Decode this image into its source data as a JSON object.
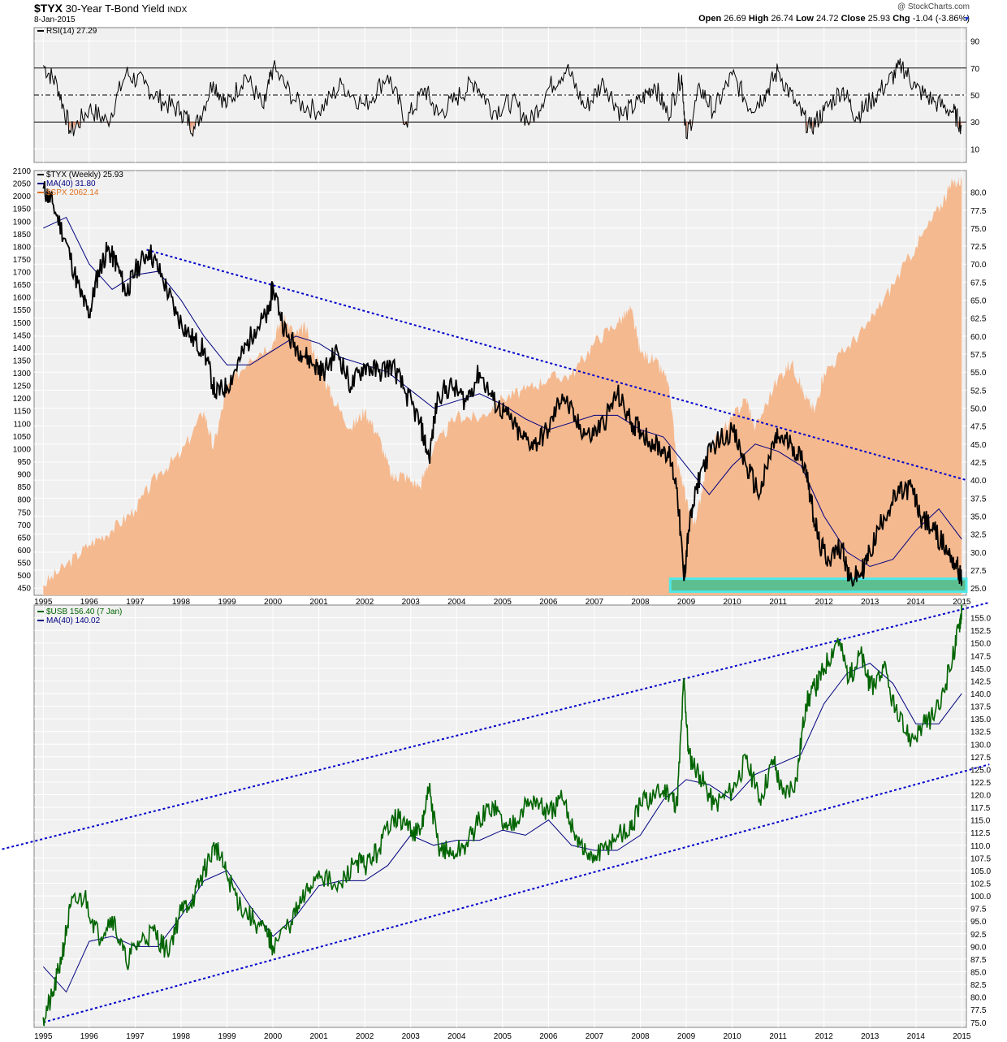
{
  "header": {
    "symbol": "$TYX",
    "name": "30-Year T-Bond Yield",
    "exchange": "INDX",
    "date": "8-Jan-2015",
    "copyright": "@ StockCharts.com",
    "ohlc": {
      "open_label": "Open",
      "open": "26.69",
      "high_label": "High",
      "high": "26.74",
      "low_label": "Low",
      "low": "24.72",
      "close_label": "Close",
      "close": "25.93",
      "chg_label": "Chg",
      "chg": "-1.04 (-3.86%)"
    },
    "chg_arrow_icon": "down-triangle-icon"
  },
  "colors": {
    "panel_bg": "#f0f0f0",
    "tyx_line": "#000000",
    "ma_line": "#000080",
    "spx_fill": "#f5b98f",
    "usb_line": "#006400",
    "trend_line": "#0000cc",
    "support_band": "#5dbf8f",
    "support_band_edge": "#50e8e8",
    "rsi_oversold_fill": "#e07040"
  },
  "chart_data": [
    {
      "type": "line",
      "panel": "rsi",
      "legend": [
        {
          "label": "RSI(14) 27.29",
          "color": "#000000"
        }
      ],
      "ylim": [
        0,
        100
      ],
      "y_ticks": [
        "10",
        "30",
        "50",
        "70",
        "90"
      ],
      "reference_lines": [
        30,
        50,
        70
      ],
      "series": [
        {
          "name": "RSI(14)",
          "x": [
            1995.0,
            1995.3,
            1995.6,
            1996.0,
            1996.4,
            1996.8,
            1997.2,
            1997.6,
            1998.0,
            1998.3,
            1998.7,
            1999.0,
            1999.4,
            1999.8,
            2000.0,
            2000.5,
            2001.0,
            2001.5,
            2002.0,
            2002.5,
            2002.9,
            2003.3,
            2003.6,
            2004.0,
            2004.4,
            2004.8,
            2005.2,
            2005.6,
            2006.0,
            2006.4,
            2006.8,
            2007.2,
            2007.6,
            2008.0,
            2008.3,
            2008.6,
            2008.9,
            2009.0,
            2009.3,
            2009.6,
            2010.0,
            2010.4,
            2010.7,
            2011.0,
            2011.4,
            2011.7,
            2012.0,
            2012.4,
            2012.7,
            2013.0,
            2013.4,
            2013.7,
            2014.0,
            2014.4,
            2014.8,
            2015.0
          ],
          "values": [
            72,
            58,
            22,
            40,
            30,
            66,
            58,
            45,
            38,
            25,
            60,
            42,
            65,
            40,
            70,
            45,
            38,
            58,
            42,
            65,
            30,
            55,
            35,
            48,
            60,
            38,
            45,
            30,
            55,
            70,
            40,
            60,
            35,
            45,
            58,
            35,
            65,
            18,
            55,
            38,
            65,
            40,
            50,
            68,
            42,
            25,
            38,
            55,
            34,
            45,
            60,
            72,
            55,
            45,
            38,
            27
          ]
        }
      ]
    },
    {
      "type": "line",
      "panel": "price",
      "legend": [
        {
          "label": "$TYX (Weekly) 25.93",
          "color": "#000000"
        },
        {
          "label": "MA(40) 31.80",
          "color": "#000080"
        },
        {
          "label": "$SPX 2062.14",
          "color": "#e07020"
        }
      ],
      "ylim": [
        24.0,
        83.0
      ],
      "y_ticks": [
        "25.0",
        "27.5",
        "30.0",
        "32.5",
        "35.0",
        "37.5",
        "40.0",
        "42.5",
        "45.0",
        "47.5",
        "50.0",
        "52.5",
        "55.0",
        "57.5",
        "60.0",
        "62.5",
        "65.0",
        "67.5",
        "70.0",
        "72.5",
        "75.0",
        "77.5",
        "80.0"
      ],
      "spx_ylim": [
        420,
        2100
      ],
      "spx_ticks": [
        "450",
        "500",
        "550",
        "600",
        "650",
        "700",
        "750",
        "800",
        "850",
        "900",
        "950",
        "1000",
        "1050",
        "1100",
        "1150",
        "1200",
        "1250",
        "1300",
        "1350",
        "1400",
        "1450",
        "1500",
        "1550",
        "1600",
        "1650",
        "1700",
        "1750",
        "1800",
        "1850",
        "1900",
        "1950",
        "2000",
        "2050",
        "2100"
      ],
      "x_ticks": [
        "1995",
        "1996",
        "1997",
        "1998",
        "1999",
        "2000",
        "2001",
        "2002",
        "2003",
        "2004",
        "2005",
        "2006",
        "2007",
        "2008",
        "2009",
        "2010",
        "2011",
        "2012",
        "2013",
        "2014",
        "2015"
      ],
      "series": [
        {
          "name": "$TYX (Weekly)",
          "x": [
            1995.0,
            1995.2,
            1995.5,
            1995.8,
            1996.0,
            1996.2,
            1996.4,
            1996.6,
            1996.8,
            1997.0,
            1997.3,
            1997.6,
            1997.9,
            1998.2,
            1998.5,
            1998.75,
            1999.0,
            1999.3,
            1999.6,
            1999.9,
            2000.0,
            2000.3,
            2000.6,
            2000.9,
            2001.1,
            2001.4,
            2001.7,
            2002.0,
            2002.3,
            2002.6,
            2002.9,
            2003.2,
            2003.4,
            2003.6,
            2003.9,
            2004.2,
            2004.5,
            2004.8,
            2005.1,
            2005.4,
            2005.7,
            2006.0,
            2006.3,
            2006.6,
            2006.9,
            2007.2,
            2007.5,
            2007.8,
            2008.0,
            2008.3,
            2008.6,
            2008.8,
            2008.95,
            2009.05,
            2009.3,
            2009.6,
            2010.0,
            2010.3,
            2010.6,
            2010.9,
            2011.0,
            2011.3,
            2011.6,
            2011.75,
            2011.9,
            2012.1,
            2012.4,
            2012.55,
            2012.8,
            2013.0,
            2013.3,
            2013.6,
            2013.9,
            2014.1,
            2014.4,
            2014.7,
            2014.9,
            2015.0
          ],
          "values": [
            80.5,
            78.5,
            73,
            66,
            63,
            69,
            72,
            70,
            66,
            69,
            72,
            68,
            63,
            60,
            58,
            52,
            53,
            57,
            61,
            63,
            67,
            60,
            58,
            56,
            55,
            58,
            53,
            56,
            55,
            56,
            52,
            48,
            43,
            52,
            53,
            51,
            55,
            51,
            49,
            46,
            45,
            47,
            52,
            48,
            46,
            48,
            52,
            48,
            47,
            45,
            44,
            39,
            26,
            33,
            41,
            45,
            47,
            42,
            38,
            45,
            46,
            45,
            42,
            36,
            31,
            29,
            31,
            26,
            27,
            30,
            35,
            38,
            39,
            35,
            33,
            30,
            28,
            25.93
          ]
        },
        {
          "name": "MA(40)",
          "x": [
            1995.0,
            1995.5,
            1996.0,
            1996.5,
            1997.0,
            1997.5,
            1998.0,
            1998.5,
            1999.0,
            1999.5,
            2000.0,
            2000.5,
            2001.0,
            2001.5,
            2002.0,
            2002.5,
            2003.0,
            2003.5,
            2004.0,
            2004.5,
            2005.0,
            2005.5,
            2006.0,
            2006.5,
            2007.0,
            2007.5,
            2008.0,
            2008.5,
            2009.0,
            2009.5,
            2010.0,
            2010.5,
            2011.0,
            2011.5,
            2012.0,
            2012.5,
            2013.0,
            2013.5,
            2014.0,
            2014.5,
            2015.0
          ],
          "values": [
            75,
            76.5,
            70,
            66.5,
            68.5,
            69,
            65,
            60,
            56,
            56,
            58,
            60,
            59,
            57,
            56,
            55,
            52.5,
            50,
            51,
            52,
            50.5,
            48.5,
            47,
            48,
            49,
            49,
            47,
            46,
            42,
            38,
            42,
            45,
            44,
            42,
            35,
            30,
            28,
            29,
            33,
            36,
            31.8
          ]
        }
      ],
      "area_series": {
        "name": "$SPX",
        "x": [
          1995.0,
          1995.5,
          1996.0,
          1996.5,
          1997.0,
          1997.5,
          1998.0,
          1998.5,
          1998.7,
          1999.0,
          1999.5,
          2000.0,
          2000.2,
          2000.5,
          2000.7,
          2001.0,
          2001.3,
          2001.7,
          2002.0,
          2002.3,
          2002.6,
          2002.8,
          2003.2,
          2003.5,
          2004.0,
          2004.5,
          2005.0,
          2005.5,
          2006.0,
          2006.5,
          2007.0,
          2007.5,
          2007.8,
          2008.0,
          2008.3,
          2008.6,
          2008.8,
          2009.0,
          2009.2,
          2009.5,
          2010.0,
          2010.3,
          2010.5,
          2011.0,
          2011.3,
          2011.6,
          2011.8,
          2012.0,
          2012.5,
          2013.0,
          2013.5,
          2014.0,
          2014.5,
          2014.8,
          2015.0
        ],
        "values": [
          460,
          540,
          620,
          680,
          760,
          900,
          980,
          1150,
          1000,
          1240,
          1360,
          1420,
          1520,
          1450,
          1480,
          1330,
          1200,
          1080,
          1150,
          1050,
          880,
          900,
          850,
          1000,
          1130,
          1120,
          1200,
          1230,
          1280,
          1290,
          1420,
          1500,
          1550,
          1380,
          1350,
          1270,
          950,
          800,
          700,
          1000,
          1120,
          1200,
          1080,
          1280,
          1340,
          1200,
          1150,
          1300,
          1400,
          1500,
          1650,
          1800,
          1950,
          2050,
          2062
        ]
      },
      "support_band": {
        "y_range": [
          24.5,
          26.3
        ],
        "x_range": [
          2008.65,
          2015.1
        ]
      },
      "trendline": {
        "from": [
          1997.25,
          72.0
        ],
        "to": [
          2015.1,
          40.0
        ]
      }
    },
    {
      "type": "line",
      "panel": "usb",
      "legend": [
        {
          "label": "$USB 156.40 (7 Jan)",
          "color": "#006400"
        },
        {
          "label": "MA(40) 140.02",
          "color": "#000080"
        }
      ],
      "ylim": [
        74.0,
        157.5
      ],
      "y_ticks": [
        "75.0",
        "77.5",
        "80.0",
        "82.5",
        "85.0",
        "87.5",
        "90.0",
        "92.5",
        "95.0",
        "97.5",
        "100.0",
        "102.5",
        "105.0",
        "107.5",
        "110.0",
        "112.5",
        "115.0",
        "117.5",
        "120.0",
        "122.5",
        "125.0",
        "127.5",
        "130.0",
        "132.5",
        "135.0",
        "137.5",
        "140.0",
        "142.5",
        "145.0",
        "147.5",
        "150.0",
        "152.5",
        "155.0"
      ],
      "x_ticks": [
        "1995",
        "1996",
        "1997",
        "1998",
        "1999",
        "2000",
        "2001",
        "2002",
        "2003",
        "2004",
        "2005",
        "2006",
        "2007",
        "2008",
        "2009",
        "2010",
        "2011",
        "2012",
        "2013",
        "2014",
        "2015"
      ],
      "series": [
        {
          "name": "$USB",
          "x": [
            1995.0,
            1995.2,
            1995.4,
            1995.6,
            1995.9,
            1996.2,
            1996.5,
            1996.8,
            1997.1,
            1997.4,
            1997.7,
            1998.0,
            1998.3,
            1998.5,
            1998.75,
            1999.0,
            1999.3,
            1999.6,
            1999.9,
            2000.0,
            2000.4,
            2000.7,
            2001.0,
            2001.4,
            2001.8,
            2002.0,
            2002.3,
            2002.6,
            2002.9,
            2003.2,
            2003.4,
            2003.6,
            2003.9,
            2004.2,
            2004.5,
            2004.8,
            2005.1,
            2005.4,
            2005.7,
            2006.0,
            2006.3,
            2006.6,
            2006.9,
            2007.2,
            2007.5,
            2007.8,
            2008.0,
            2008.3,
            2008.6,
            2008.8,
            2008.95,
            2009.05,
            2009.3,
            2009.6,
            2010.0,
            2010.3,
            2010.6,
            2010.9,
            2011.1,
            2011.4,
            2011.6,
            2011.8,
            2012.0,
            2012.3,
            2012.55,
            2012.8,
            2013.0,
            2013.3,
            2013.6,
            2013.9,
            2014.2,
            2014.5,
            2014.8,
            2014.95,
            2015.0
          ],
          "values": [
            76,
            80,
            88,
            98,
            100,
            92,
            96,
            87,
            91,
            93,
            89,
            97,
            100,
            105,
            110,
            104,
            98,
            95,
            92,
            90,
            95,
            100,
            105,
            101,
            107,
            106,
            109,
            116,
            114,
            112,
            121,
            110,
            108,
            110,
            115,
            118,
            113,
            117,
            119,
            116,
            119,
            112,
            107,
            109,
            112,
            113,
            118,
            120,
            121,
            118,
            143,
            128,
            124,
            118,
            121,
            127,
            119,
            127,
            120,
            123,
            138,
            141,
            145,
            151,
            143,
            148,
            141,
            145,
            135,
            131,
            134,
            137,
            147,
            154,
            156.4
          ]
        },
        {
          "name": "MA(40)",
          "x": [
            1995.0,
            1995.5,
            1996.0,
            1996.5,
            1997.0,
            1997.5,
            1998.0,
            1998.5,
            1999.0,
            1999.5,
            2000.0,
            2000.5,
            2001.0,
            2001.5,
            2002.0,
            2002.5,
            2003.0,
            2003.5,
            2004.0,
            2004.5,
            2005.0,
            2005.5,
            2006.0,
            2006.5,
            2007.0,
            2007.5,
            2008.0,
            2008.5,
            2009.0,
            2009.5,
            2010.0,
            2010.5,
            2011.0,
            2011.5,
            2012.0,
            2012.5,
            2013.0,
            2013.5,
            2014.0,
            2014.5,
            2015.0
          ],
          "values": [
            86,
            81,
            91,
            92,
            90,
            90,
            96,
            103,
            105,
            98,
            92,
            96,
            102,
            103,
            103,
            106,
            112,
            110,
            111,
            111,
            113,
            112,
            115,
            110,
            109,
            109,
            112,
            119,
            123,
            122,
            119,
            124,
            126,
            128,
            138,
            144,
            146,
            142,
            134,
            134,
            140.02
          ]
        }
      ],
      "upper_trendline": {
        "from": [
          1994.0,
          109.0
        ],
        "to": [
          2015.6,
          158.0
        ]
      },
      "lower_trendline": {
        "from": [
          1995.0,
          75.0
        ],
        "to": [
          2015.6,
          126.0
        ]
      }
    }
  ]
}
